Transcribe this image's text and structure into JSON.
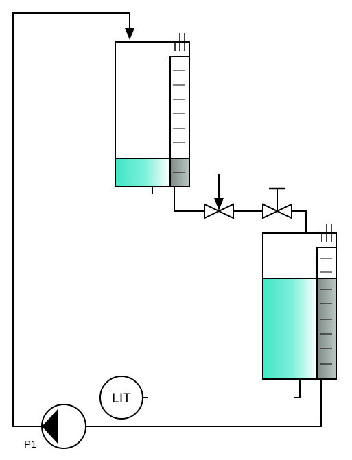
{
  "diagram": {
    "pump_label": "P1",
    "instrument_label": "LIT"
  },
  "components": {
    "upper_tank": {
      "level": 0.24,
      "sight_glass_ticks": 12
    },
    "lower_tank": {
      "level": 0.69,
      "sight_glass_ticks": 12
    },
    "valves": [
      "control-valve",
      "manual-valve"
    ],
    "pump": "P1",
    "instrument": "LIT"
  },
  "colors": {
    "line": "#000000",
    "liquid": "#40e6c8",
    "sight_glass_liquid": "#9aa8a4",
    "background": "#ffffff"
  }
}
